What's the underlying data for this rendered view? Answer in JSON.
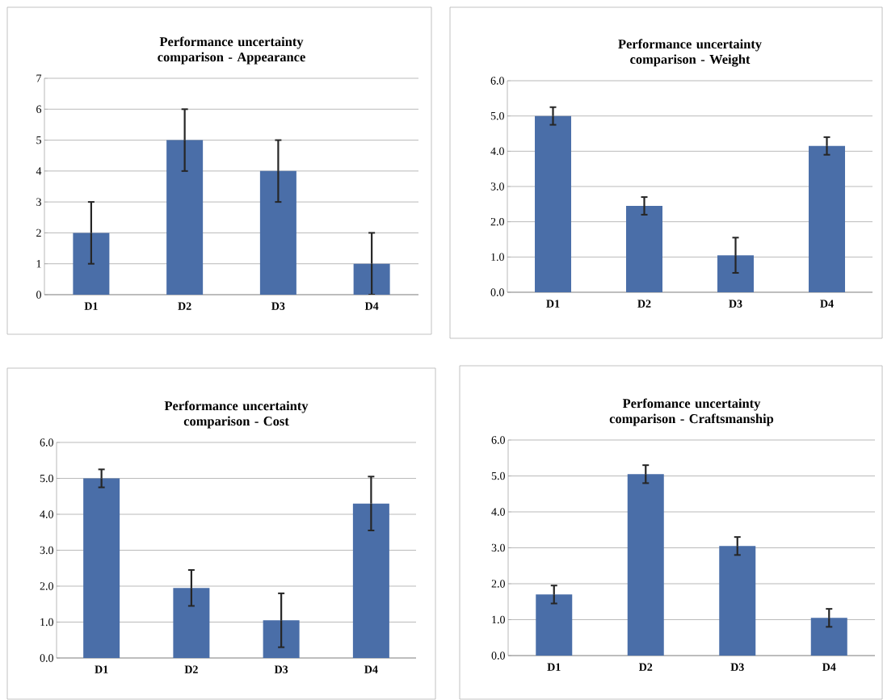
{
  "chart_data": [
    {
      "type": "bar",
      "title": "Performance uncertainty comparison - Appearance",
      "categories": [
        "D1",
        "D2",
        "D3",
        "D4"
      ],
      "values": [
        2,
        5,
        4,
        1
      ],
      "errors": [
        1,
        1,
        1,
        1
      ],
      "color": "#4a6ea8",
      "ylim": [
        0,
        7
      ],
      "yticks": [
        0,
        1,
        2,
        3,
        4,
        5,
        6,
        7
      ],
      "grid": "y"
    },
    {
      "type": "bar",
      "title": "Performance uncertainty comparison - Weight",
      "categories": [
        "D1",
        "D2",
        "D3",
        "D4"
      ],
      "values": [
        5.0,
        2.45,
        1.05,
        4.15
      ],
      "errors": [
        0.25,
        0.25,
        0.5,
        0.25
      ],
      "color": "#4a6ea8",
      "ylim": [
        0,
        6
      ],
      "yticks": [
        {
          "value": 0,
          "label": "0.0"
        },
        {
          "value": 1,
          "label": "1.0"
        },
        {
          "value": 2,
          "label": "2.0"
        },
        {
          "value": 3,
          "label": "3.0"
        },
        {
          "value": 4,
          "label": "4.0"
        },
        {
          "value": 5,
          "label": "5.0"
        },
        {
          "value": 6,
          "label": "6.0"
        }
      ],
      "grid": "y"
    },
    {
      "type": "bar",
      "title": "Performance uncertainty comparison - Cost",
      "categories": [
        "D1",
        "D2",
        "D3",
        "D4"
      ],
      "values": [
        5.0,
        1.95,
        1.05,
        4.3
      ],
      "errors": [
        0.25,
        0.5,
        0.75,
        0.75
      ],
      "color": "#4a6ea8",
      "ylim": [
        0,
        6
      ],
      "yticks": [
        {
          "value": 0,
          "label": "0.0"
        },
        {
          "value": 1,
          "label": "1.0"
        },
        {
          "value": 2,
          "label": "2.0"
        },
        {
          "value": 3,
          "label": "3.0"
        },
        {
          "value": 4,
          "label": "4.0"
        },
        {
          "value": 5,
          "label": "5.0"
        },
        {
          "value": 6,
          "label": "6.0"
        }
      ],
      "grid": "y"
    },
    {
      "type": "bar",
      "title": "Perfomance uncertainty comparison - Craftsmanship",
      "categories": [
        "D1",
        "D2",
        "D3",
        "D4"
      ],
      "values": [
        1.7,
        5.05,
        3.05,
        1.05
      ],
      "errors": [
        0.25,
        0.25,
        0.25,
        0.25
      ],
      "color": "#4a6ea8",
      "ylim": [
        0,
        6
      ],
      "yticks": [
        {
          "value": 0,
          "label": "0.0"
        },
        {
          "value": 1,
          "label": "1.0"
        },
        {
          "value": 2,
          "label": "2.0"
        },
        {
          "value": 3,
          "label": "3.0"
        },
        {
          "value": 4,
          "label": "4.0"
        },
        {
          "value": 5,
          "label": "5.0"
        },
        {
          "value": 6,
          "label": "6.0"
        }
      ],
      "grid": "y"
    }
  ]
}
